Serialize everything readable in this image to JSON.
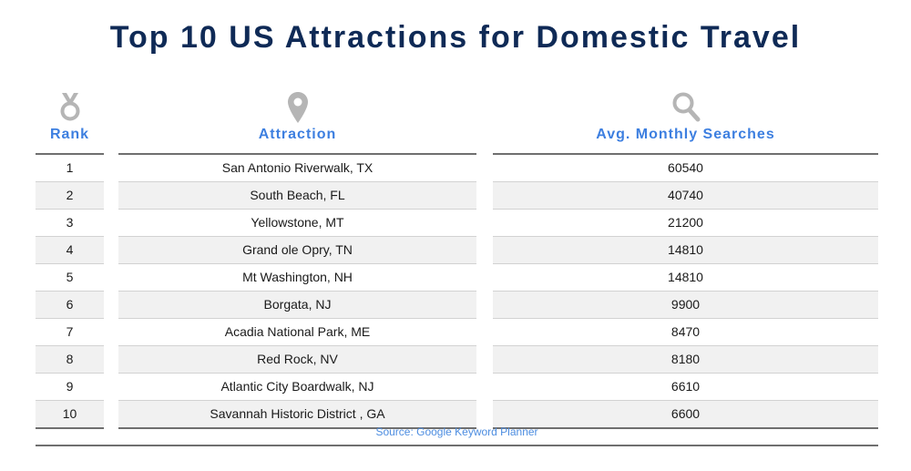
{
  "title": "Top 10 US Attractions for Domestic Travel",
  "columns": {
    "rank": {
      "label": "Rank",
      "icon": "medal-icon"
    },
    "attraction": {
      "label": "Attraction",
      "icon": "map-pin-icon"
    },
    "searches": {
      "label": "Avg. Monthly Searches",
      "icon": "search-icon"
    }
  },
  "source": "Source: Google Keyword Planner",
  "colors": {
    "title": "#0f2a56",
    "header": "#3d7fe0",
    "icon": "#b5b5b5",
    "stripe": "#f1f1f1",
    "source": "#4d8de0"
  },
  "chart_data": {
    "type": "table",
    "title": "Top 10 US Attractions for Domestic Travel",
    "headers": [
      "Rank",
      "Attraction",
      "Avg. Monthly Searches"
    ],
    "rows": [
      [
        "1",
        "San Antonio Riverwalk, TX",
        "60540"
      ],
      [
        "2",
        "South Beach, FL",
        "40740"
      ],
      [
        "3",
        "Yellowstone, MT",
        "21200"
      ],
      [
        "4",
        "Grand ole Opry, TN",
        "14810"
      ],
      [
        "5",
        "Mt Washington, NH",
        "14810"
      ],
      [
        "6",
        "Borgata, NJ",
        "9900"
      ],
      [
        "7",
        "Acadia National Park, ME",
        "8470"
      ],
      [
        "8",
        "Red Rock, NV",
        "8180"
      ],
      [
        "9",
        "Atlantic City Boardwalk, NJ",
        "6610"
      ],
      [
        "10",
        "Savannah Historic District , GA",
        "6600"
      ]
    ]
  }
}
